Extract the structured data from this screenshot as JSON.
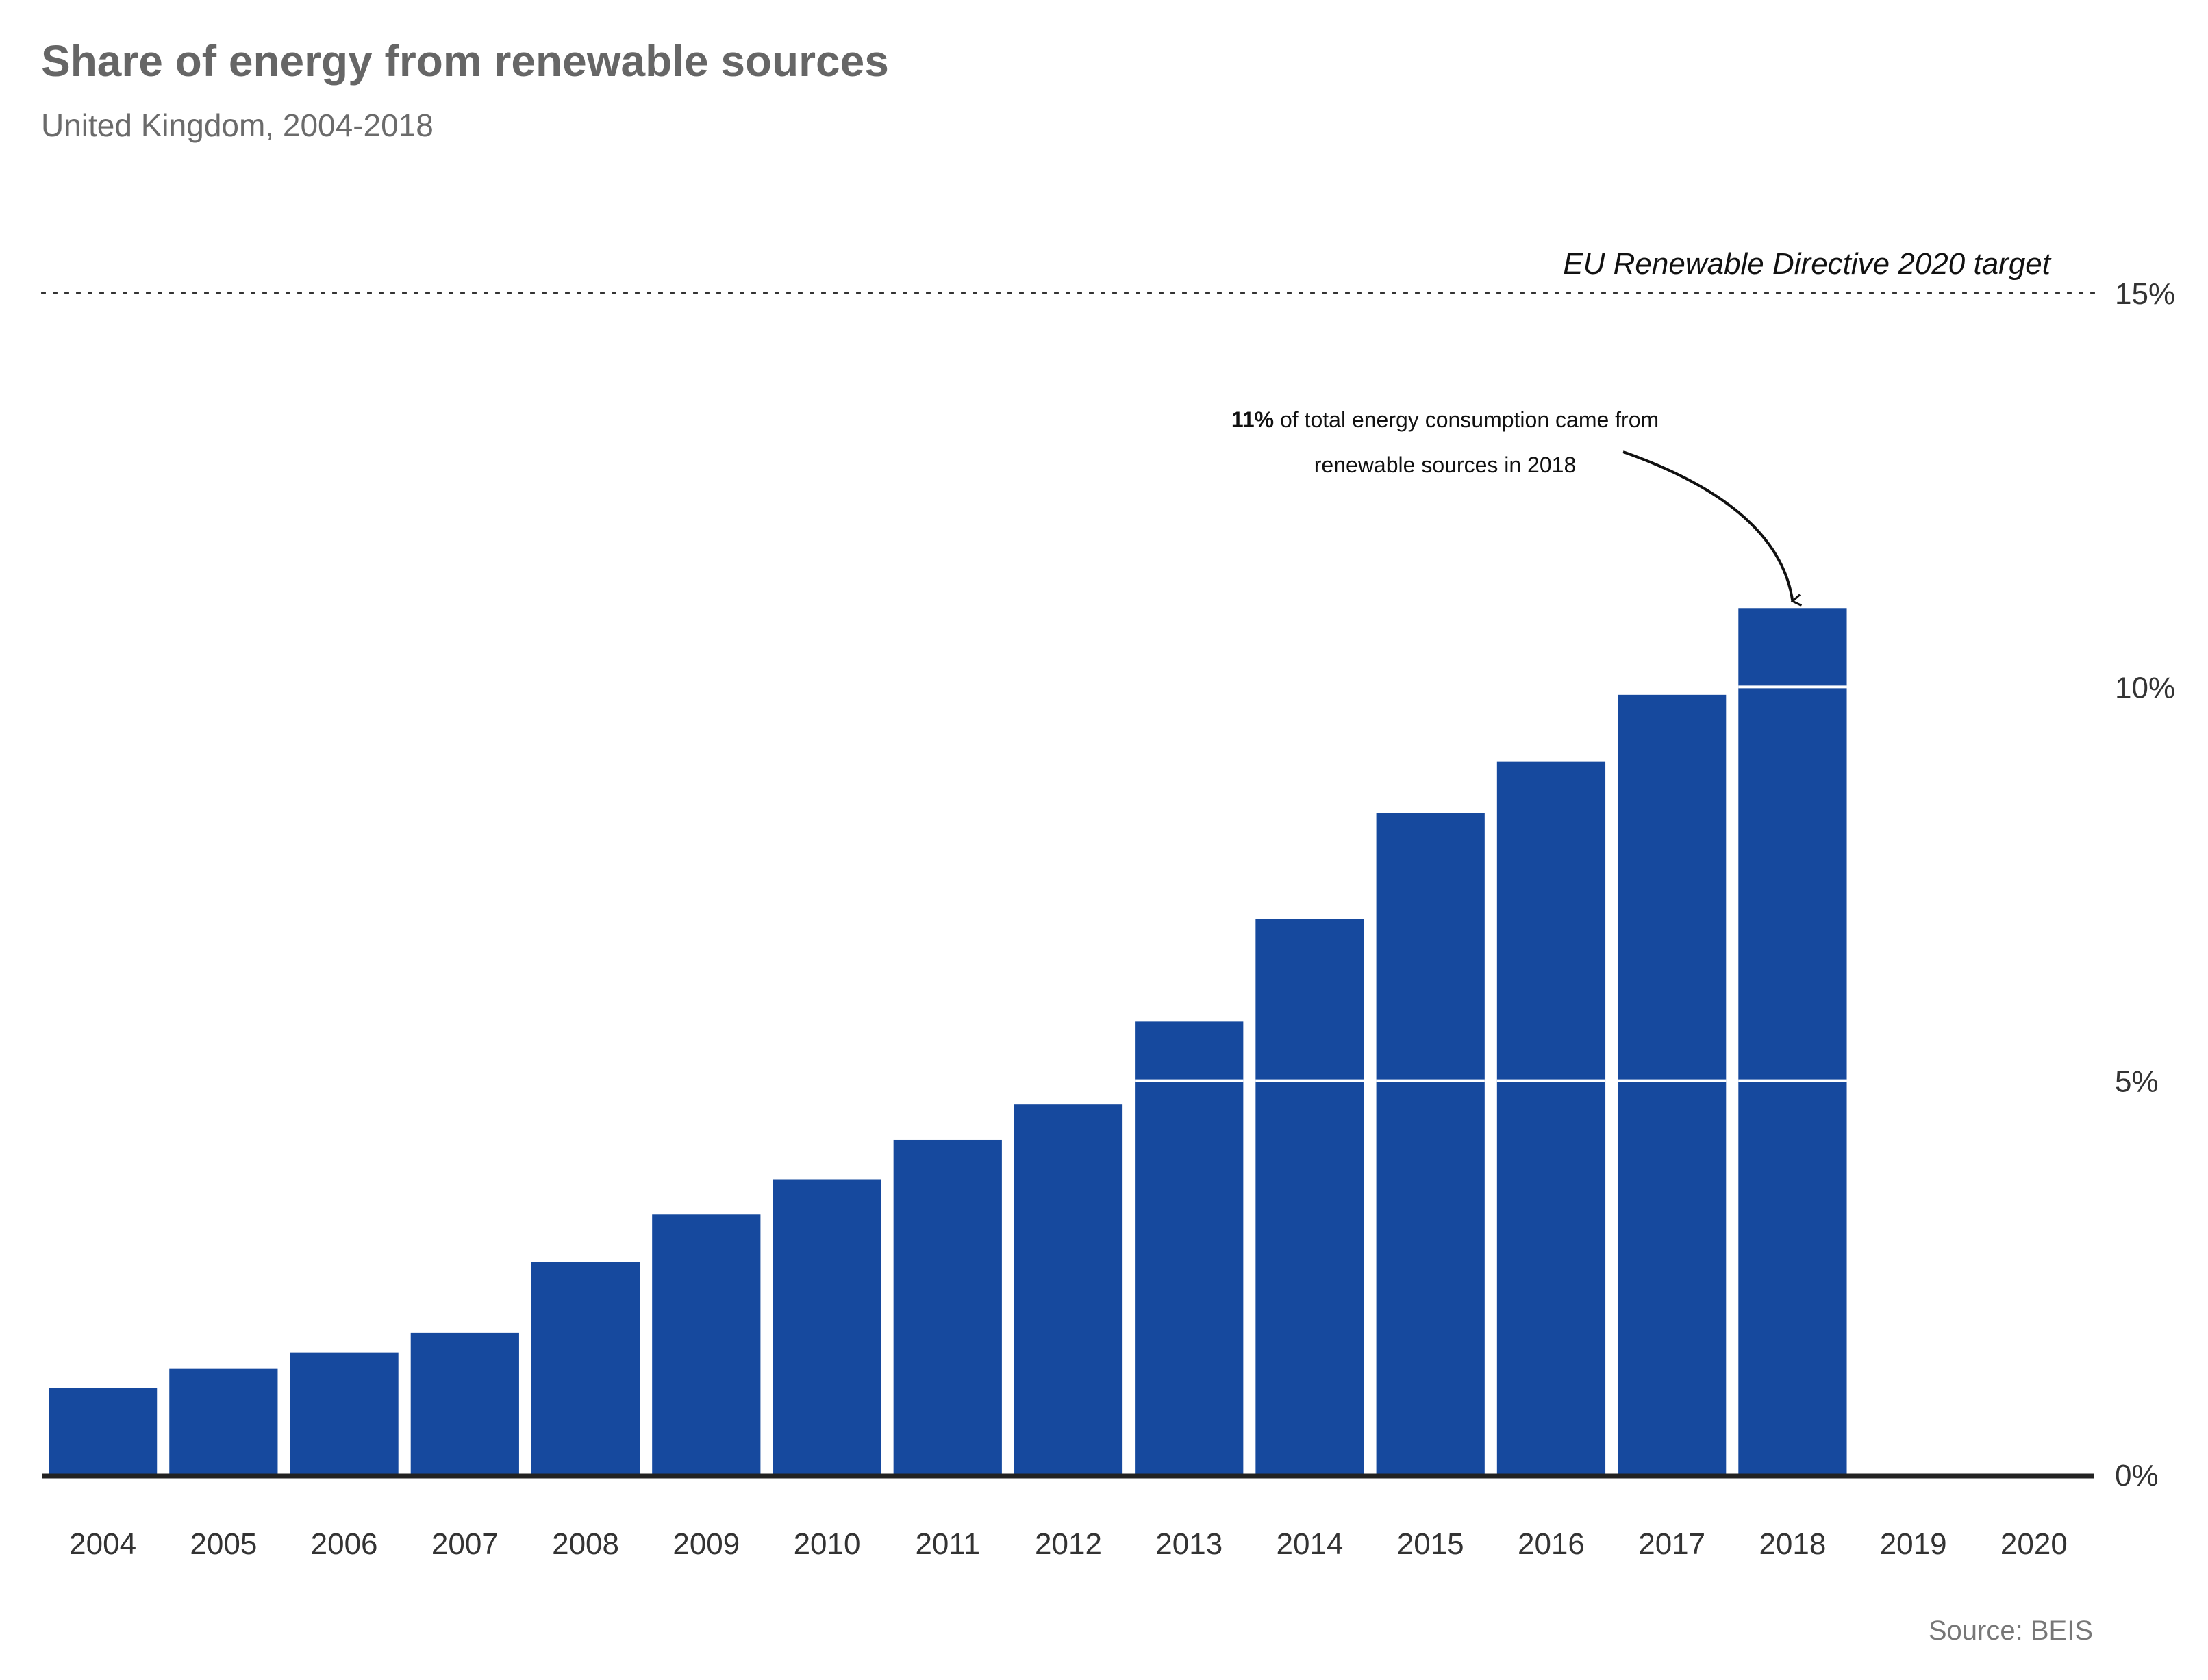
{
  "title": "Share of energy from renewable sources",
  "subtitle": "United Kingdom, 2004-2018",
  "source": "Source: BEIS",
  "colors": {
    "bar": "#16499e",
    "axis": "#222222",
    "gridline_on_bar": "#ffffff",
    "target_line": "#333333"
  },
  "chart_data": {
    "type": "bar",
    "title": "Share of energy from renewable sources",
    "subtitle": "United Kingdom, 2004-2018",
    "categories": [
      "2004",
      "2005",
      "2006",
      "2007",
      "2008",
      "2009",
      "2010",
      "2011",
      "2012",
      "2013",
      "2014",
      "2015",
      "2016",
      "2017",
      "2018",
      "2019",
      "2020"
    ],
    "values": [
      1.1,
      1.35,
      1.55,
      1.8,
      2.7,
      3.3,
      3.75,
      4.25,
      4.7,
      5.75,
      7.05,
      8.4,
      9.05,
      9.9,
      11.0,
      null,
      null
    ],
    "ylim": [
      0,
      15
    ],
    "yticks": [
      0,
      5,
      10,
      15
    ],
    "ytick_labels": [
      "0%",
      "5%",
      "10%",
      "15%"
    ],
    "y_axis_position": "right",
    "gridlines_visible_on_bars": true,
    "reference_line": {
      "value": 15,
      "label": "EU Renewable Directive 2020 target",
      "style": "dotted"
    },
    "annotation": {
      "target_category": "2018",
      "bold_text": "11%",
      "line1_rest": " of total energy consumption came from",
      "line2": "renewable sources in 2018"
    }
  }
}
